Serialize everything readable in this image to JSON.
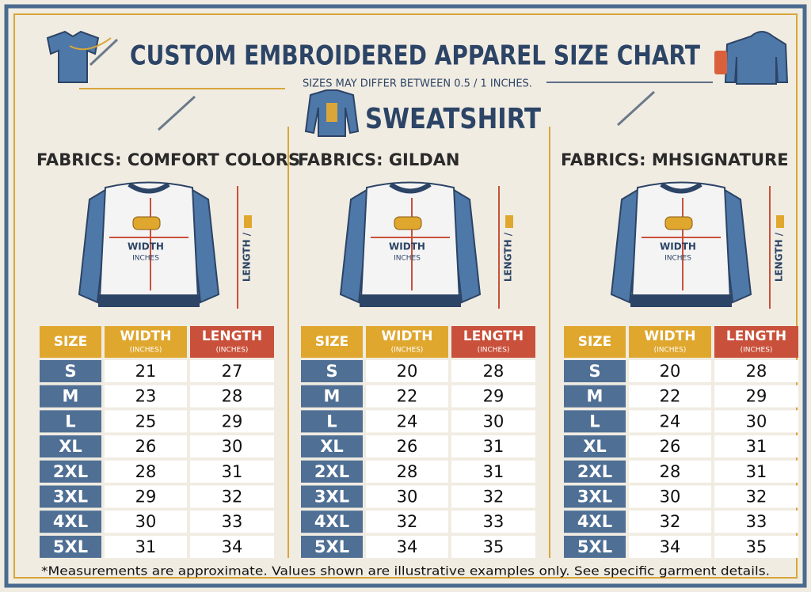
{
  "header": {
    "title": "CUSTOM EMBROIDERED APPAREL SIZE CHART",
    "subtitle": "SIZES MAY DIFFER BETWEEN 0.5 / 1 INCHES.",
    "garment": "SWEATSHIRT"
  },
  "panels": [
    {
      "fabric": "FABRICS: COMFORT COLORS",
      "diagram": {
        "width": "WIDTH",
        "width_unit": "INCHES",
        "length": "LENGTH /"
      },
      "table": {
        "headers": [
          {
            "label": "SIZE"
          },
          {
            "label": "WIDTH",
            "unit": "(INCHES)"
          },
          {
            "label": "LENGTH",
            "unit": "(INCHES)"
          }
        ],
        "rows": [
          [
            "S",
            21,
            27
          ],
          [
            "M",
            23,
            28
          ],
          [
            "L",
            25,
            29
          ],
          [
            "XL",
            26,
            30
          ],
          [
            "2XL",
            28,
            31
          ],
          [
            "3XL",
            29,
            32
          ],
          [
            "4XL",
            30,
            33
          ],
          [
            "5XL",
            31,
            34
          ]
        ]
      }
    },
    {
      "fabric": "FABRICS: GILDAN",
      "diagram": {
        "width": "WIDTH",
        "width_unit": "INCHES",
        "length": "LENGTH /"
      },
      "table": {
        "headers": [
          {
            "label": "SIZE"
          },
          {
            "label": "WIDTH",
            "unit": "(INCHES)"
          },
          {
            "label": "LENGTH",
            "unit": "(INCHES)"
          }
        ],
        "rows": [
          [
            "S",
            20,
            28
          ],
          [
            "M",
            22,
            29
          ],
          [
            "L",
            24,
            30
          ],
          [
            "XL",
            26,
            31
          ],
          [
            "2XL",
            28,
            31
          ],
          [
            "3XL",
            30,
            32
          ],
          [
            "4XL",
            32,
            33
          ],
          [
            "5XL",
            34,
            35
          ]
        ]
      }
    },
    {
      "fabric": "FABRICS: MHSIGNATURE",
      "diagram": {
        "width": "WIDTH",
        "width_unit": "INCHES",
        "length": "LENGTH /"
      },
      "table": {
        "headers": [
          {
            "label": "SIZE"
          },
          {
            "label": "WIDTH",
            "unit": "(INCHES)"
          },
          {
            "label": "LENGTH",
            "unit": "(INCHES)"
          }
        ],
        "rows": [
          [
            "S",
            20,
            28
          ],
          [
            "M",
            22,
            29
          ],
          [
            "L",
            24,
            30
          ],
          [
            "XL",
            26,
            31
          ],
          [
            "2XL",
            28,
            31
          ],
          [
            "3XL",
            30,
            32
          ],
          [
            "4XL",
            32,
            33
          ],
          [
            "5XL",
            34,
            35
          ]
        ]
      }
    }
  ],
  "footnote": "*Measurements are approximate. Values shown are illustrative examples only. See specific garment details."
}
